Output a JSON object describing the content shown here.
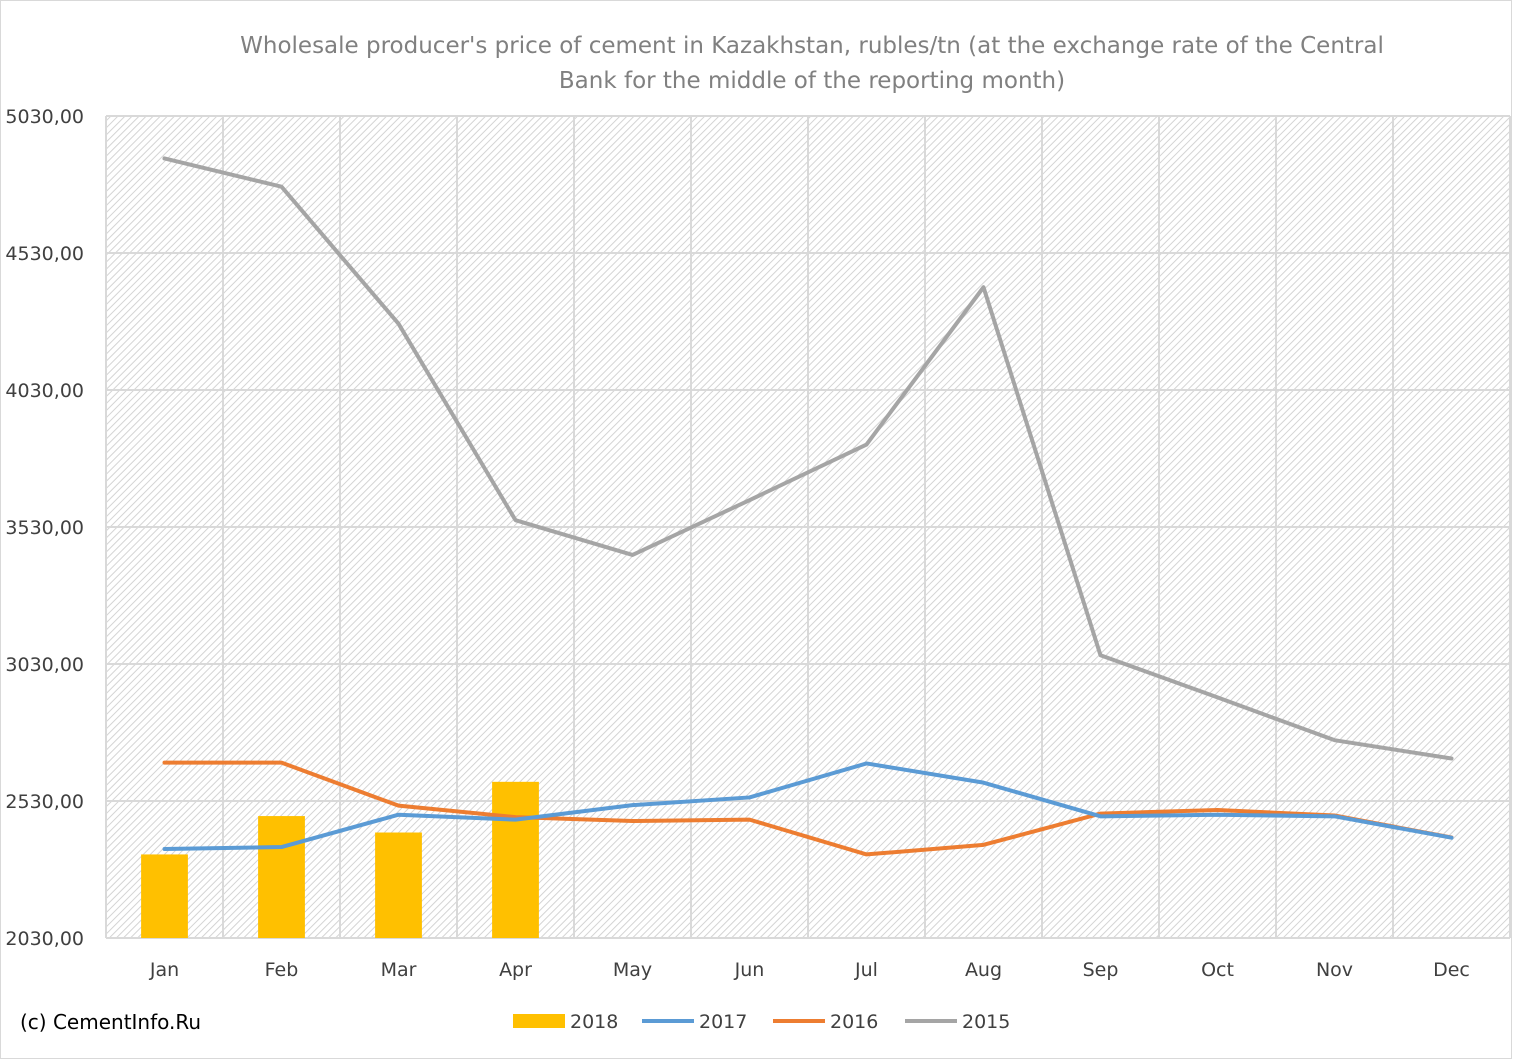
{
  "chart_data": {
    "type": "bar+line",
    "title_lines": [
      "Wholesale producer's price of cement in Kazakhstan, rubles/tn (at the exchange rate of the Central",
      "Bank for the middle of the reporting month)"
    ],
    "categories": [
      "Jan",
      "Feb",
      "Mar",
      "Apr",
      "May",
      "Jun",
      "Jul",
      "Aug",
      "Sep",
      "Oct",
      "Nov",
      "Dec"
    ],
    "ylim": [
      2030,
      5030
    ],
    "yticks": [
      2030,
      2530,
      3030,
      3530,
      4030,
      4530,
      5030
    ],
    "ytick_labels": [
      "2030,00",
      "2530,00",
      "3030,00",
      "3530,00",
      "4030,00",
      "4530,00",
      "5030,00"
    ],
    "grid": true,
    "legend_position": "bottom",
    "series": [
      {
        "name": "2018",
        "kind": "bar",
        "color": "#FFC000",
        "values": [
          2335,
          2475,
          2415,
          2600,
          null,
          null,
          null,
          null,
          null,
          null,
          null,
          null
        ]
      },
      {
        "name": "2017",
        "kind": "line",
        "color": "#5B9BD5",
        "values": [
          2355,
          2362,
          2480,
          2462,
          2515,
          2543,
          2667,
          2597,
          2474,
          2480,
          2474,
          2396
        ]
      },
      {
        "name": "2016",
        "kind": "line",
        "color": "#ED7D31",
        "values": [
          2670,
          2670,
          2513,
          2471,
          2457,
          2462,
          2335,
          2370,
          2484,
          2497,
          2477,
          2397
        ]
      },
      {
        "name": "2015",
        "kind": "line",
        "color": "#A5A5A5",
        "values": [
          4875,
          4772,
          4272,
          3555,
          3428,
          3628,
          3831,
          4405,
          3062,
          2908,
          2752,
          2685
        ]
      }
    ]
  },
  "credit": "(c) CementInfo.Ru"
}
